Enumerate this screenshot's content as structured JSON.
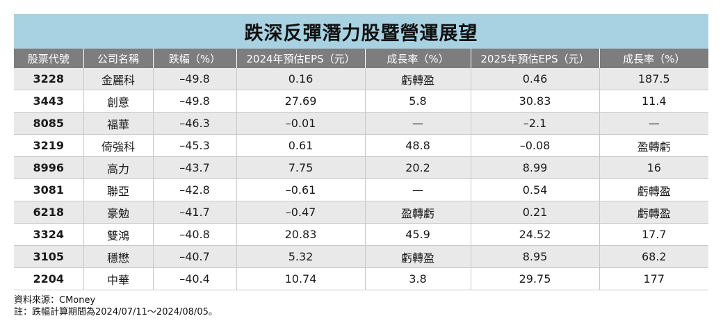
{
  "title": "跌深反彈潛力股暨營運展望",
  "columns": [
    "股票代號",
    "公司名稱",
    "跌幅（%）",
    "2024年預估EPS（元）",
    "成長率（%）",
    "2025年預估EPS（元）",
    "成長率（%）"
  ],
  "rows": [
    [
      "3228",
      "金麗科",
      "–49.8",
      "0.16",
      "虧轉盈",
      "0.46",
      "187.5"
    ],
    [
      "3443",
      "創意",
      "–49.8",
      "27.69",
      "5.8",
      "30.83",
      "11.4"
    ],
    [
      "8085",
      "福華",
      "–46.3",
      "–0.01",
      "—",
      "–2.1",
      "—"
    ],
    [
      "3219",
      "倚強科",
      "–45.3",
      "0.61",
      "48.8",
      "–0.08",
      "盈轉虧"
    ],
    [
      "8996",
      "高力",
      "–43.7",
      "7.75",
      "20.2",
      "8.99",
      "16"
    ],
    [
      "3081",
      "聯亞",
      "–42.8",
      "–0.61",
      "—",
      "0.54",
      "虧轉盈"
    ],
    [
      "6218",
      "豪勉",
      "–41.7",
      "–0.47",
      "盈轉虧",
      "0.21",
      "虧轉盈"
    ],
    [
      "3324",
      "雙鴻",
      "–40.8",
      "20.83",
      "45.9",
      "24.52",
      "17.7"
    ],
    [
      "3105",
      "穩懋",
      "–40.7",
      "5.32",
      "虧轉盈",
      "8.95",
      "68.2"
    ],
    [
      "2204",
      "中華",
      "–40.4",
      "10.74",
      "3.8",
      "29.75",
      "177"
    ]
  ],
  "notes": {
    "source": "資料來源：CMoney",
    "footnote": "註：跌幅計算期間為2024/07/11～2024/08/05。"
  },
  "colors": {
    "title_bg": "#a8d2e2",
    "header_bg": "#7d7d7d",
    "row_shaded": "#e9e9e9"
  }
}
